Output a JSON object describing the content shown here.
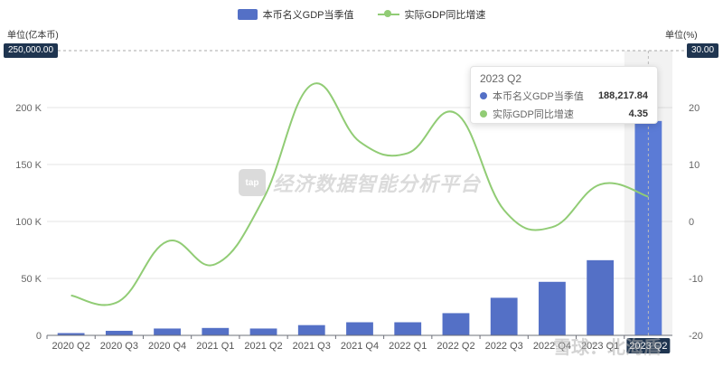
{
  "legend": {
    "bar_label": "本币名义GDP当季值",
    "line_label": "实际GDP同比增速"
  },
  "left_unit": "单位(亿本币)",
  "right_unit": "单位(%)",
  "left_pointer": "250,000.00",
  "right_pointer": "30.00",
  "tooltip": {
    "title": "2023 Q2",
    "rows": [
      {
        "name": "本币名义GDP当季值",
        "value": "188,217.84",
        "color": "#5470c6"
      },
      {
        "name": "实际GDP同比增速",
        "value": "4.35",
        "color": "#91cc75"
      }
    ]
  },
  "watermark": {
    "logo": "tap",
    "text": "经济数据智能分析平台",
    "corner": "雪球：北海盾"
  },
  "colors": {
    "bar": "#5470c6",
    "line": "#91cc75",
    "grid": "#e6e6e6",
    "pill": "#1f3550"
  },
  "chart_data": {
    "type": "bar",
    "categories": [
      "2020 Q2",
      "2020 Q3",
      "2020 Q4",
      "2021 Q1",
      "2021 Q2",
      "2021 Q3",
      "2021 Q4",
      "2022 Q1",
      "2022 Q2",
      "2022 Q3",
      "2022 Q4",
      "2023 Q1",
      "2023 Q2"
    ],
    "series": [
      {
        "name": "本币名义GDP当季值",
        "type": "bar",
        "axis": "left",
        "values": [
          2000,
          4000,
          6000,
          6500,
          6000,
          9000,
          11500,
          11500,
          19500,
          33000,
          47000,
          66000,
          188217.84
        ]
      },
      {
        "name": "实际GDP同比增速",
        "type": "line",
        "axis": "right",
        "values": [
          -13,
          -14,
          -3.5,
          -7.5,
          4,
          24,
          14,
          12,
          19,
          2,
          -1,
          6.5,
          4.35
        ]
      }
    ],
    "y_left": {
      "min": 0,
      "max": 250000,
      "ticks": [
        0,
        50000,
        100000,
        150000,
        200000
      ],
      "tick_labels": [
        "0",
        "50 K",
        "100 K",
        "150 K",
        "200 K"
      ]
    },
    "y_right": {
      "min": -20,
      "max": 30,
      "ticks": [
        -20,
        -10,
        0,
        10,
        20
      ],
      "tick_labels": [
        "-20",
        "-10",
        "0",
        "10",
        "20"
      ]
    },
    "highlighted_category": "2023 Q2",
    "grid": true,
    "legend_position": "top-center"
  }
}
